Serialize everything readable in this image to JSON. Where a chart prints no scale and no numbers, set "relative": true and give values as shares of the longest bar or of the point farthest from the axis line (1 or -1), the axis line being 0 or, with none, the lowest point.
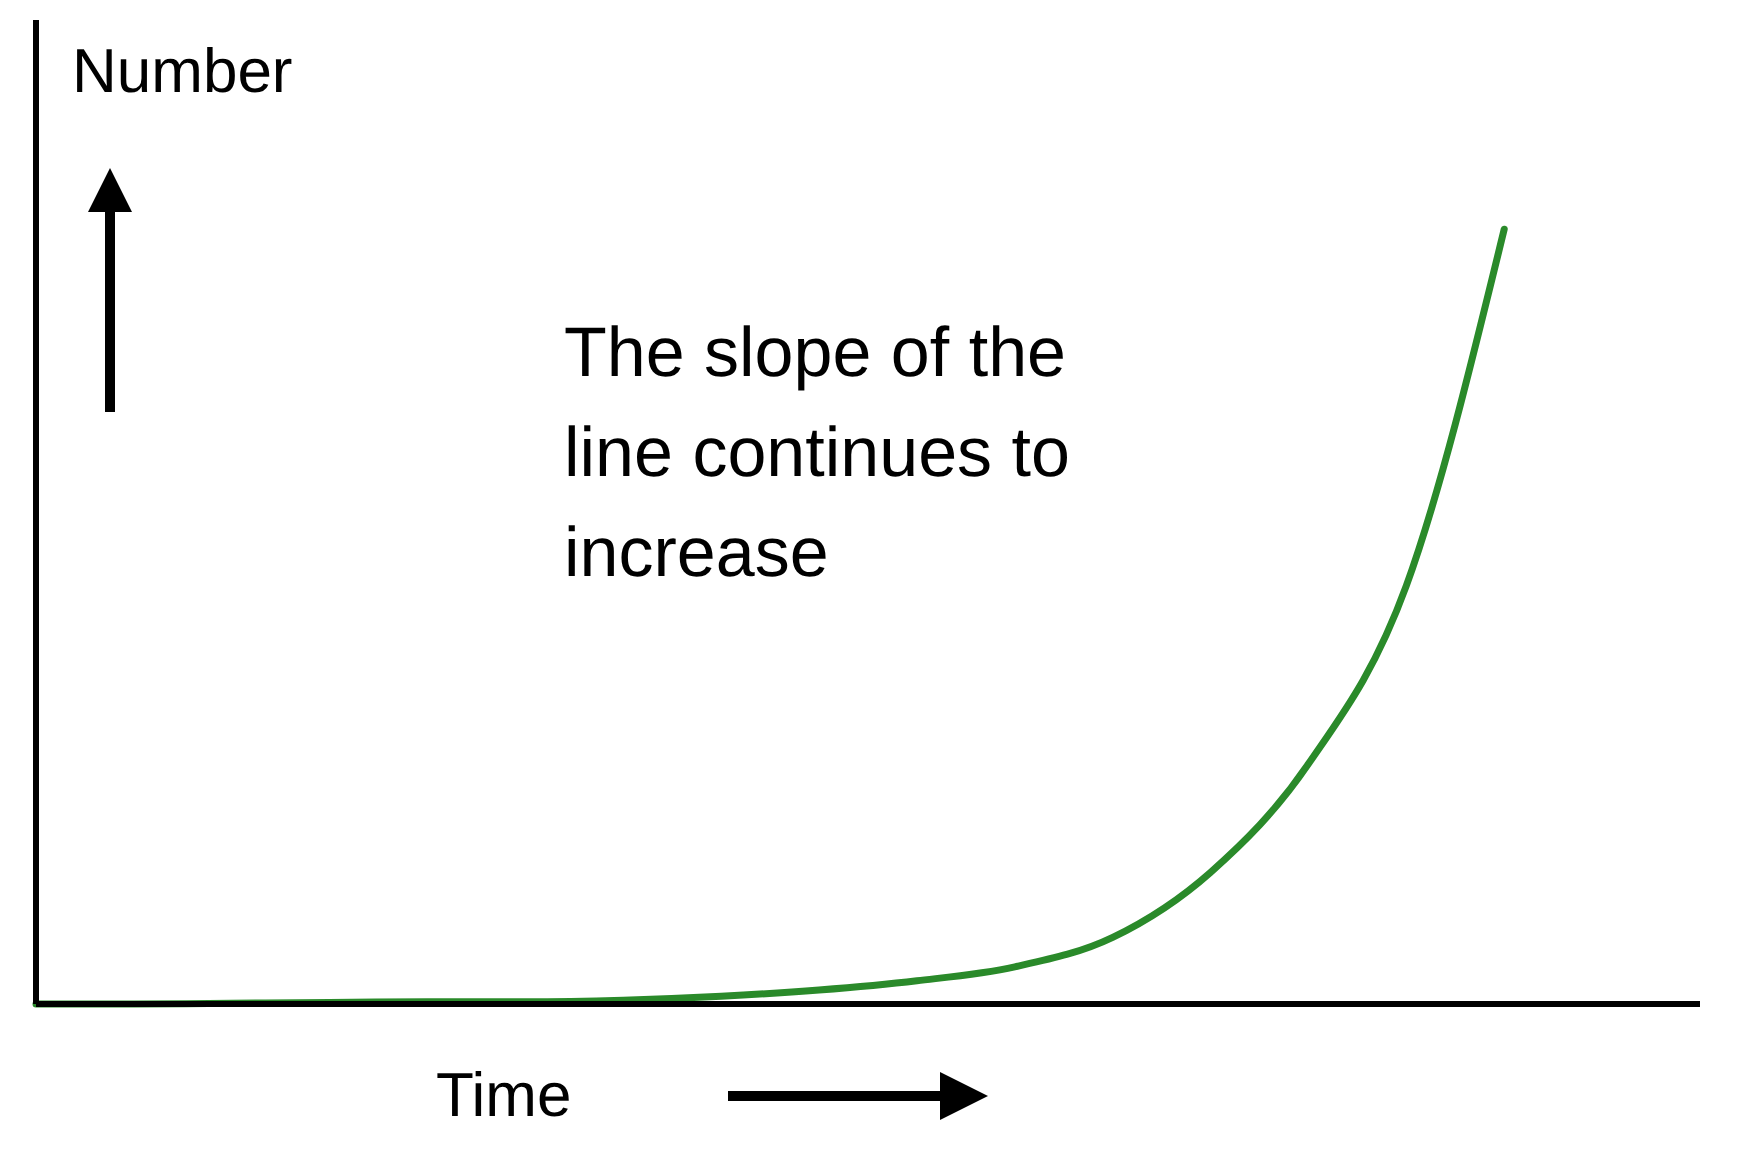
{
  "chart_data": {
    "type": "line",
    "relative": true,
    "xlabel": "Time",
    "ylabel": "Number",
    "annotations": [
      "The slope of the line continues to increase"
    ],
    "categories": [
      null,
      null,
      null,
      null,
      null,
      null,
      null,
      null,
      null,
      null,
      null,
      null,
      null,
      null,
      null,
      null,
      null,
      null
    ],
    "series": [
      {
        "color": "#2a8a2a",
        "values": [
          0,
          0,
          0.001,
          0.002,
          0.003,
          0.003,
          0.005,
          0.01,
          0.018,
          0.03,
          0.048,
          0.086,
          0.17,
          0.31,
          0.54,
          1,
          null,
          null
        ]
      }
    ],
    "grid": false,
    "legend": false,
    "marker": "none",
    "line_style": "solid"
  }
}
